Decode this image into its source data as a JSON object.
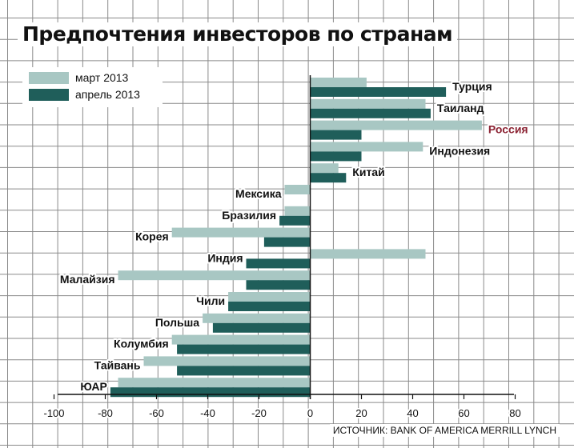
{
  "title": "Предпочтения инвесторов по странам",
  "source": "ИСТОЧНИК: BANK OF AMERICA MERRILL LYNCH",
  "colors": {
    "march": "#a8c7c3",
    "april": "#1f5e5a",
    "highlight_label": "#8b2232",
    "grid": "#888888",
    "text": "#111111"
  },
  "chart_data": {
    "type": "bar",
    "orientation": "horizontal",
    "title": "Предпочтения инвесторов по странам",
    "categories": [
      "Турция",
      "Таиланд",
      "Россия",
      "Индонезия",
      "Китай",
      "Мексика",
      "Бразилия",
      "Корея",
      "Индия",
      "Малайзия",
      "Чили",
      "Польша",
      "Колумбия",
      "Тайвань",
      "ЮАР"
    ],
    "highlight": "Россия",
    "series": [
      {
        "name": "март 2013",
        "color": "#a8c7c3",
        "values": [
          22,
          45,
          67,
          44,
          11,
          -10,
          -10,
          -54,
          45,
          -75,
          -32,
          -42,
          -54,
          -65,
          -75
        ]
      },
      {
        "name": "апрель 2013",
        "color": "#1f5e5a",
        "values": [
          53,
          47,
          20,
          20,
          14,
          0,
          -12,
          -18,
          -25,
          -25,
          -32,
          -38,
          -52,
          -52,
          -78
        ]
      }
    ],
    "xlim": [
      -100,
      80
    ],
    "xticks": [
      "-100",
      "-80",
      "-60",
      "-40",
      "-20",
      "0",
      "20",
      "40",
      "60",
      "80"
    ],
    "grid": true,
    "legend": "top-left"
  }
}
